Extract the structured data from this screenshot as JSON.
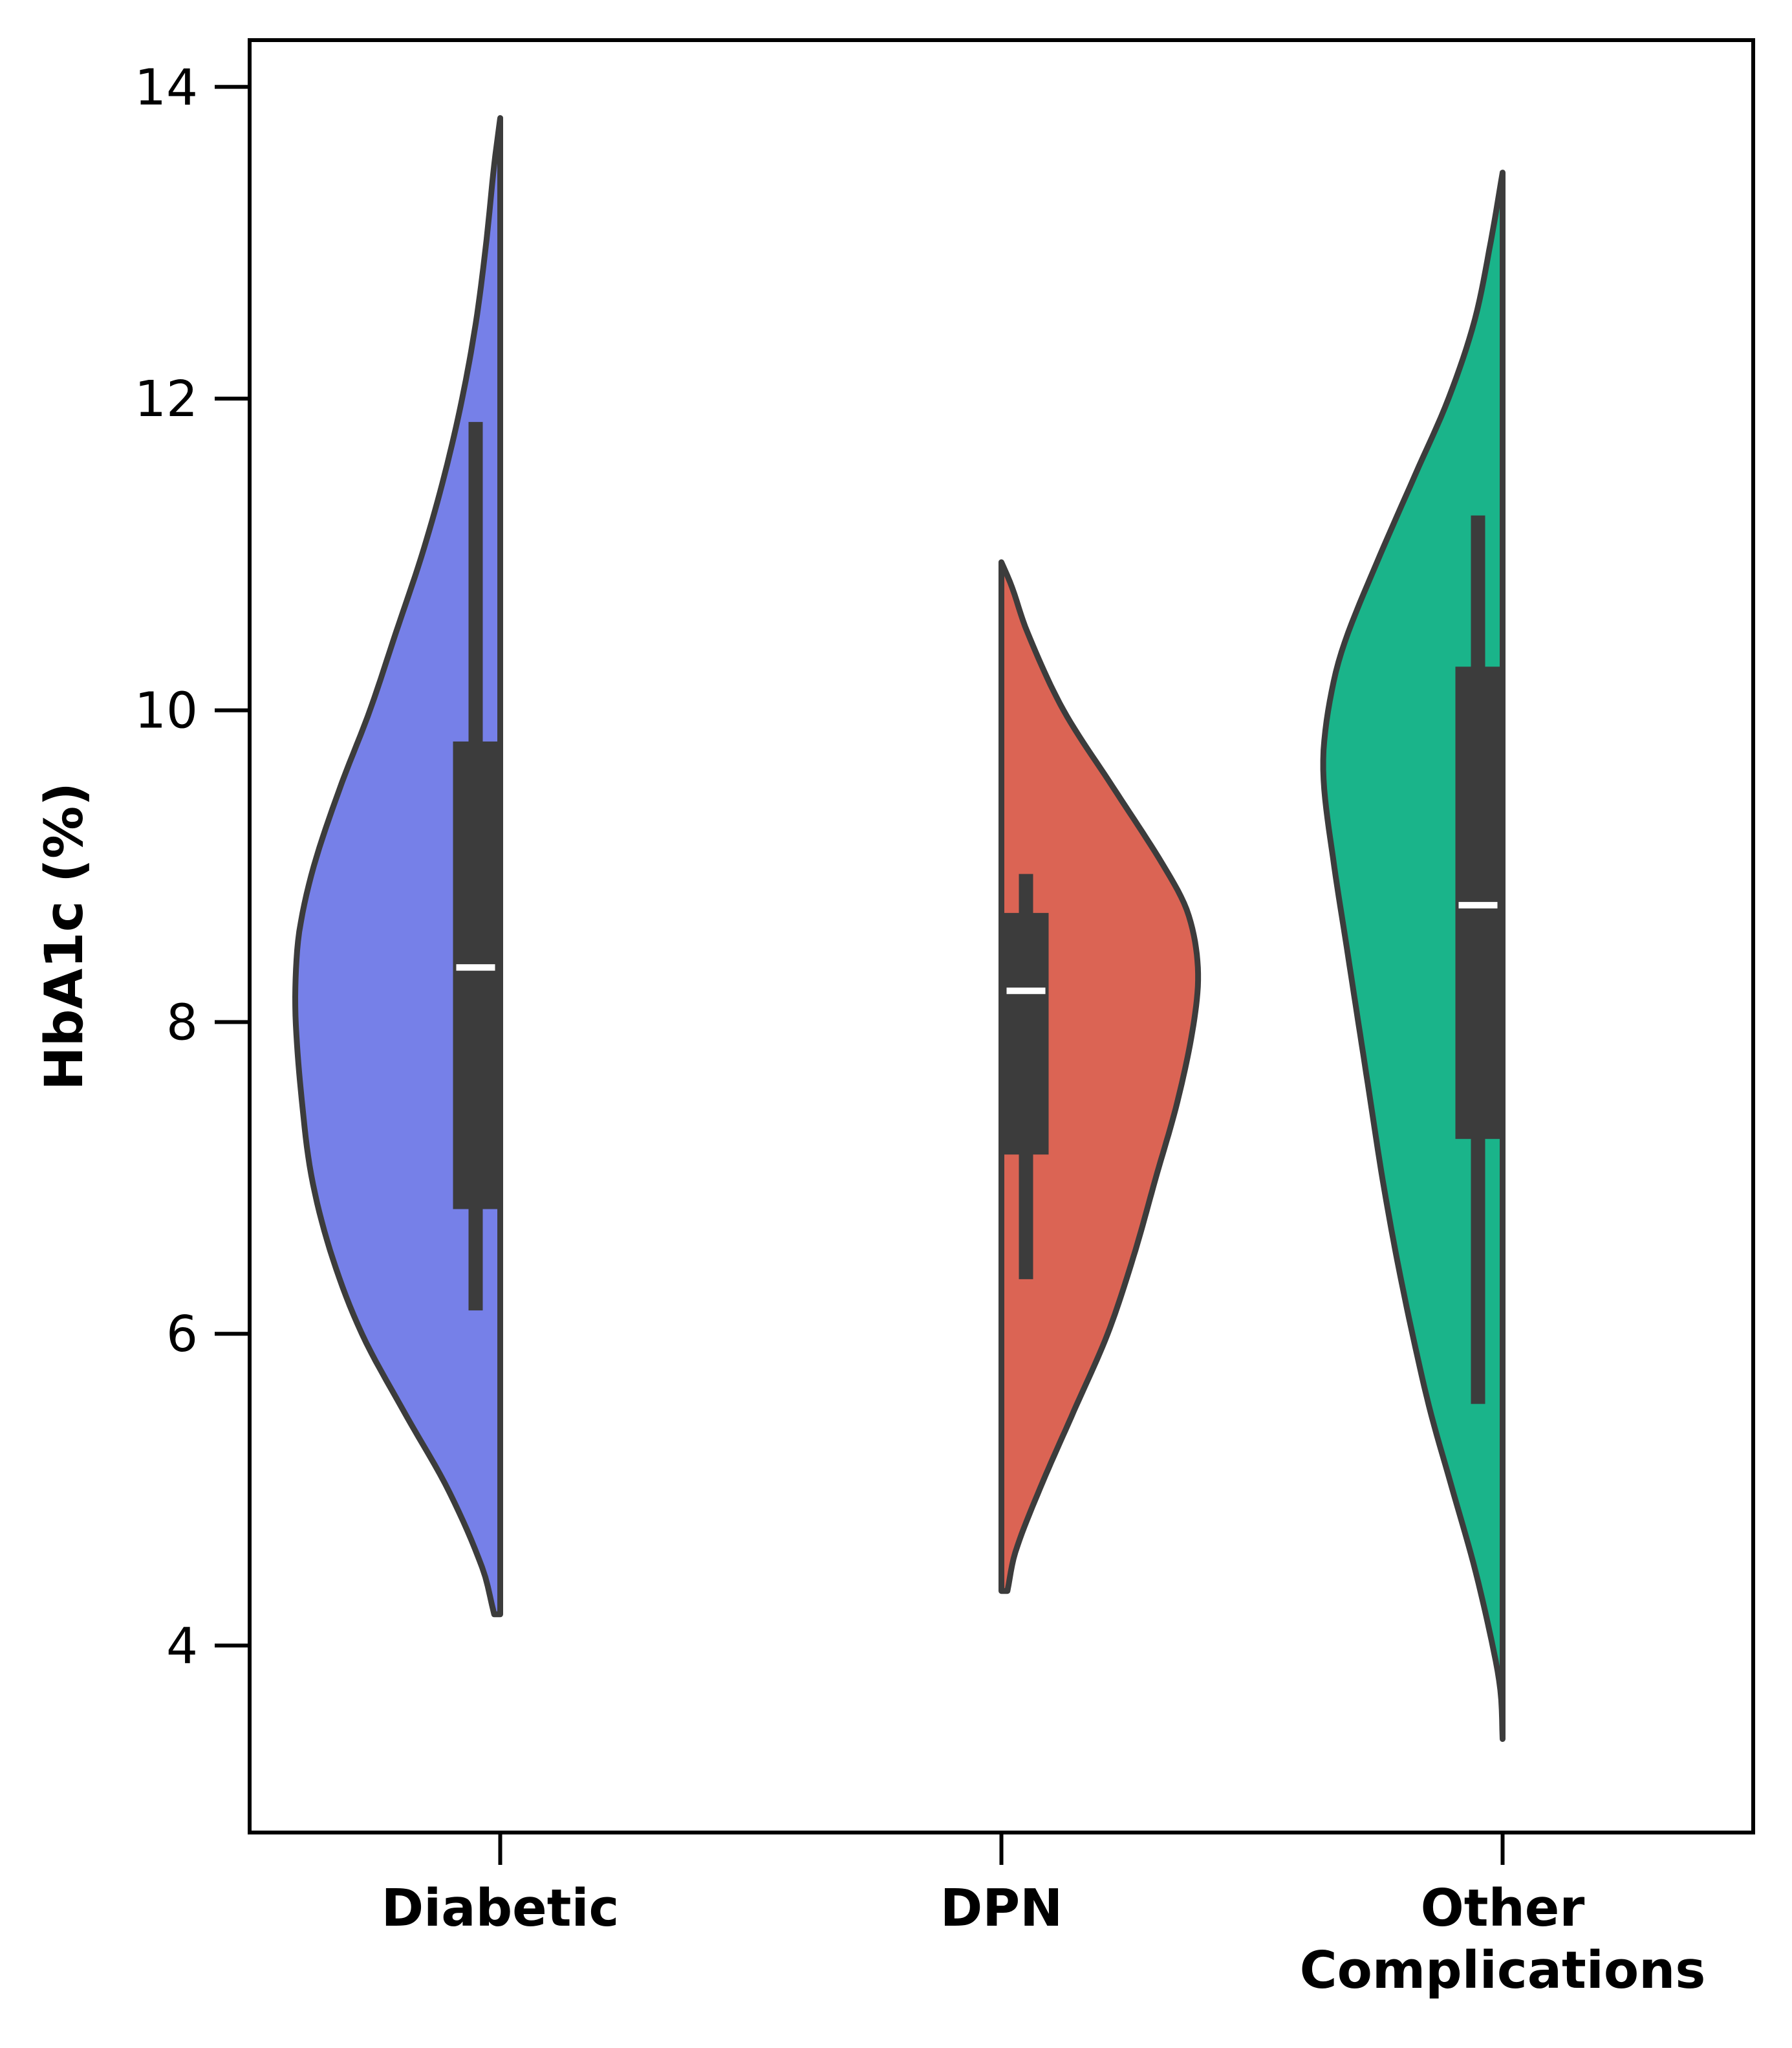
{
  "chart_data": {
    "type": "violin",
    "split": true,
    "ylabel": "HbA1c (%)",
    "xlabel": "",
    "ylim": [
      2.8,
      14.3
    ],
    "yticks": [
      4,
      6,
      8,
      10,
      12,
      14
    ],
    "grid": false,
    "legend": "none",
    "categories": [
      "Diabetic",
      "DPN",
      "Other\nComplications"
    ],
    "series": [
      {
        "category": "Diabetic",
        "side": "left",
        "color": "#7680E8",
        "kde_range": [
          4.2,
          13.8
        ],
        "density_profile": [
          [
            4.2,
            0.03
          ],
          [
            4.5,
            0.09
          ],
          [
            5.0,
            0.26
          ],
          [
            5.5,
            0.48
          ],
          [
            6.0,
            0.69
          ],
          [
            6.5,
            0.84
          ],
          [
            7.0,
            0.94
          ],
          [
            7.5,
            0.99
          ],
          [
            8.0,
            1.02
          ],
          [
            8.3,
            1.02
          ],
          [
            8.6,
            1.0
          ],
          [
            9.0,
            0.93
          ],
          [
            9.5,
            0.8
          ],
          [
            10.0,
            0.65
          ],
          [
            10.5,
            0.52
          ],
          [
            11.0,
            0.39
          ],
          [
            11.5,
            0.28
          ],
          [
            12.0,
            0.19
          ],
          [
            12.5,
            0.12
          ],
          [
            13.0,
            0.07
          ],
          [
            13.5,
            0.03
          ],
          [
            13.8,
            0.0
          ]
        ],
        "box": {
          "whisker_low": 6.15,
          "q1": 6.8,
          "median": 8.35,
          "q3": 9.8,
          "whisker_high": 11.85
        }
      },
      {
        "category": "DPN",
        "side": "right",
        "color": "#DB6454",
        "kde_range": [
          4.35,
          10.95
        ],
        "density_profile": [
          [
            4.35,
            0.03
          ],
          [
            4.6,
            0.07
          ],
          [
            5.0,
            0.19
          ],
          [
            5.5,
            0.36
          ],
          [
            6.0,
            0.53
          ],
          [
            6.5,
            0.66
          ],
          [
            7.0,
            0.77
          ],
          [
            7.5,
            0.88
          ],
          [
            8.0,
            0.96
          ],
          [
            8.35,
            0.98
          ],
          [
            8.7,
            0.93
          ],
          [
            9.0,
            0.81
          ],
          [
            9.5,
            0.56
          ],
          [
            10.0,
            0.31
          ],
          [
            10.5,
            0.13
          ],
          [
            10.8,
            0.05
          ],
          [
            10.95,
            0.0
          ]
        ],
        "box": {
          "whisker_low": 6.35,
          "q1": 7.15,
          "median": 8.2,
          "q3": 8.7,
          "whisker_high": 8.95
        }
      },
      {
        "category": "Other\nComplications",
        "side": "left",
        "color": "#1AB48A",
        "kde_range": [
          3.4,
          13.45
        ],
        "density_profile": [
          [
            3.4,
            0.0
          ],
          [
            3.7,
            0.01
          ],
          [
            4.0,
            0.05
          ],
          [
            4.5,
            0.14
          ],
          [
            5.0,
            0.25
          ],
          [
            5.5,
            0.36
          ],
          [
            6.0,
            0.45
          ],
          [
            6.5,
            0.53
          ],
          [
            7.0,
            0.6
          ],
          [
            7.5,
            0.66
          ],
          [
            8.0,
            0.72
          ],
          [
            8.5,
            0.78
          ],
          [
            9.0,
            0.84
          ],
          [
            9.5,
            0.89
          ],
          [
            9.8,
            0.89
          ],
          [
            10.2,
            0.84
          ],
          [
            10.5,
            0.77
          ],
          [
            11.0,
            0.61
          ],
          [
            11.5,
            0.44
          ],
          [
            12.0,
            0.27
          ],
          [
            12.5,
            0.14
          ],
          [
            13.0,
            0.06
          ],
          [
            13.45,
            0.0
          ]
        ],
        "box": {
          "whisker_low": 5.55,
          "q1": 7.25,
          "median": 8.75,
          "q3": 10.28,
          "whisker_high": 11.25
        }
      }
    ],
    "style": {
      "outline_color": "#3C3C3C",
      "box_color": "#3C3C3C",
      "median_color": "#FFFFFF",
      "axis_color": "#000000"
    }
  }
}
